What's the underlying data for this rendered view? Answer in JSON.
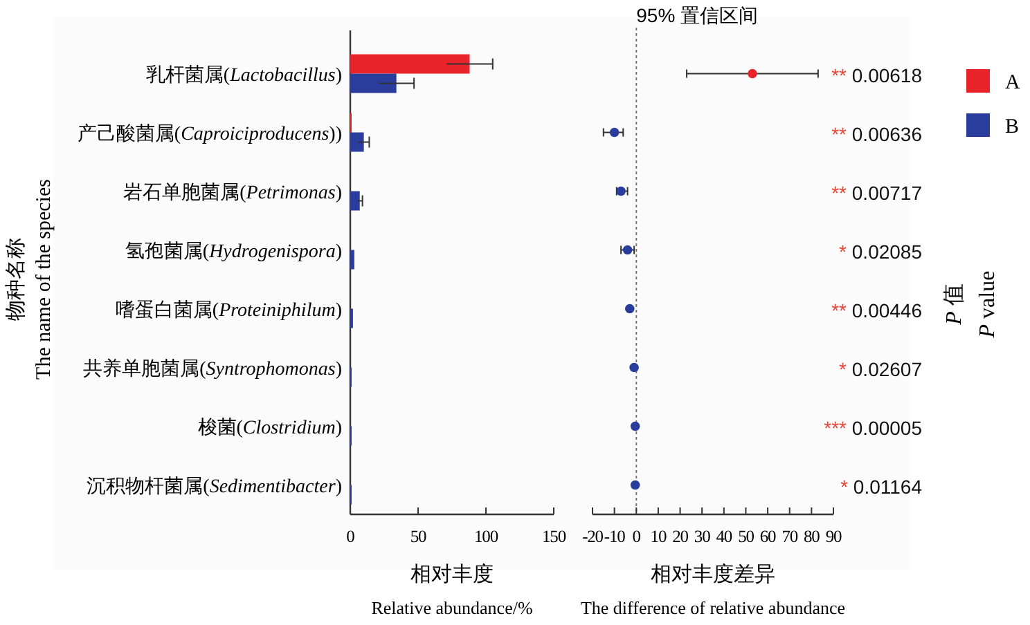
{
  "chart_data": [
    {
      "type": "bar",
      "orientation": "horizontal",
      "legend": "right",
      "categories": [
        "乳杆菌属(*Lactobacillus*)",
        "产己酸菌属(*Caproiciproducens*))",
        "岩石单胞菌属(*Petrimonas*)",
        "氢孢菌属(*Hydrogenispora*)",
        "嗜蛋白菌属(*Proteiniphilum*)",
        "共养单胞菌属(*Syntrophomonas*)",
        "梭菌(*Clostridium*)",
        "沉积物杆菌属(*Sedimentibacter*)"
      ],
      "series": [
        {
          "name": "A",
          "color": "#e8232a",
          "values": [
            88,
            1,
            0,
            0,
            0,
            0,
            0,
            0
          ],
          "errors": [
            17,
            null,
            null,
            null,
            null,
            null,
            null,
            null
          ]
        },
        {
          "name": "B",
          "color": "#2a3d9c",
          "values": [
            34,
            10,
            7,
            3,
            2,
            1,
            1,
            1
          ],
          "errors": [
            13,
            4,
            2,
            null,
            null,
            null,
            null,
            null
          ]
        }
      ],
      "xlim": [
        0,
        150
      ],
      "xticks": [
        0,
        50,
        100,
        150
      ],
      "xlabel": "相对丰度\nRelative abundance/%",
      "ylabel": "物种名称\nThe name of the species"
    },
    {
      "type": "scatter",
      "orientation": "horizontal",
      "marker": "circle",
      "tick_labels": "x",
      "title": "95% 置信区间",
      "categories": [
        "乳杆菌属(*Lactobacillus*)",
        "产己酸菌属(*Caproiciproducens*))",
        "岩石单胞菌属(*Petrimonas*)",
        "氢孢菌属(*Hydrogenispora*)",
        "嗜蛋白菌属(*Proteiniphilum*)",
        "共养单胞菌属(*Syntrophomonas*)",
        "梭菌(*Clostridium*)",
        "沉积物杆菌属(*Sedimentibacter*)"
      ],
      "values": [
        53,
        -10,
        -7,
        -4,
        -3,
        -1,
        -0.5,
        -0.5
      ],
      "colors": [
        "#e8232a",
        "#2a3d9c",
        "#2a3d9c",
        "#2a3d9c",
        "#2a3d9c",
        "#2a3d9c",
        "#2a3d9c",
        "#2a3d9c"
      ],
      "errors": [
        [
          23,
          83
        ],
        [
          -15,
          -6
        ],
        [
          -9,
          -4
        ],
        [
          -7,
          -1
        ],
        null,
        null,
        null,
        null
      ],
      "xlim": [
        -20,
        90
      ],
      "xticks": [
        -20,
        -10,
        0,
        10,
        20,
        30,
        40,
        50,
        60,
        70,
        80,
        90
      ],
      "ref_lines": [
        {
          "axis": "x",
          "value": 0,
          "line_style": "dotted"
        }
      ],
      "xlabel": "相对丰度差异\nThe difference of relative abundance",
      "y2label": "*P* 值\n*P* value",
      "annotations": [
        "** 0.00618",
        "** 0.00636",
        "** 0.00717",
        "* 0.02085",
        "** 0.00446",
        "* 0.02607",
        "*** 0.00005",
        "* 0.01164"
      ]
    }
  ]
}
